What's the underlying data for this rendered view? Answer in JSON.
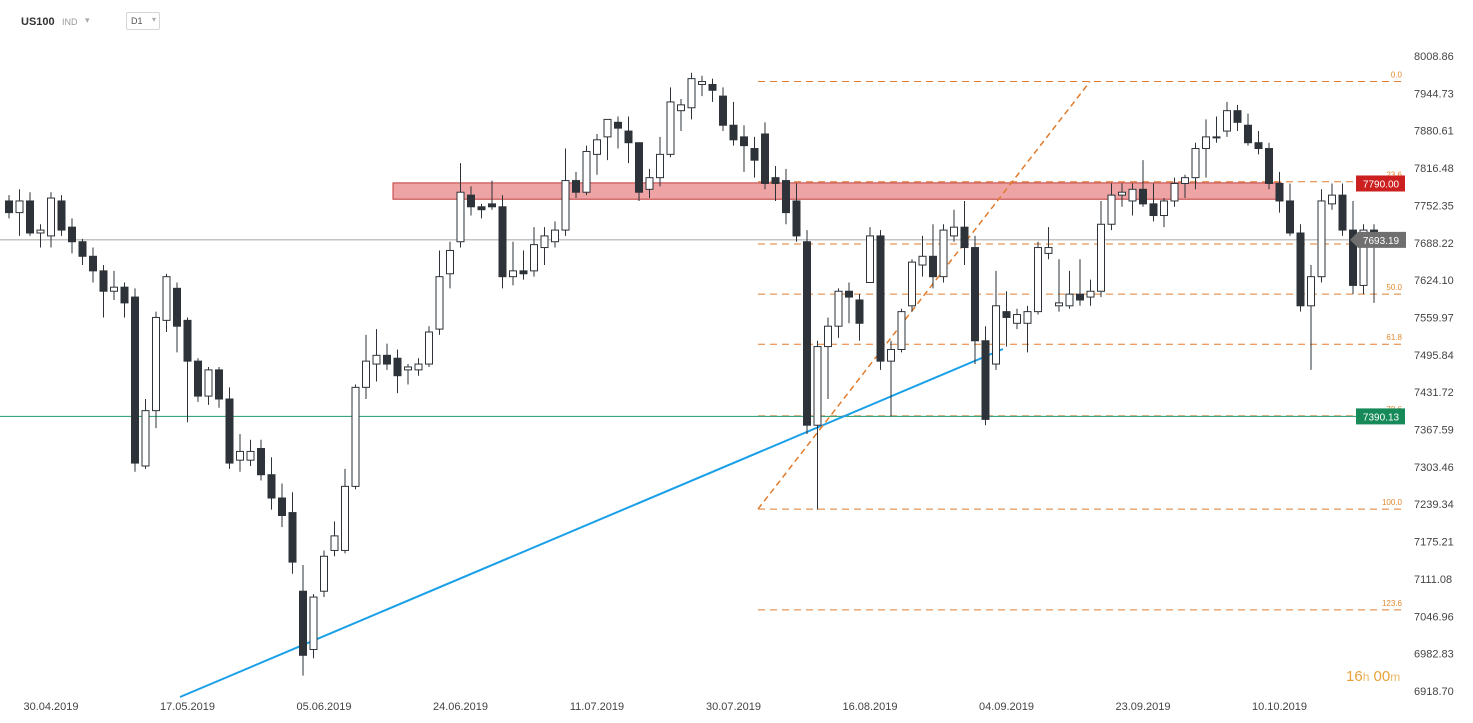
{
  "toolbar": {
    "symbol": "US100",
    "type": "IND",
    "timeframe": "D1"
  },
  "countdown": {
    "value_h": "16",
    "unit_h": "h",
    "value_m": "00",
    "unit_m": "m"
  },
  "colors": {
    "bull_body": "#ffffff",
    "bear_body": "#2d3339",
    "wick": "#2d3339",
    "fib": "#e07c2e",
    "fib_label": "#e08a2e",
    "trendline": "#1aa0e8",
    "resistance_zone": "#e05a5a",
    "resistance_label_bg": "#cc1f1f",
    "support_line": "#1f9a6a",
    "support_label_bg": "#178a5a",
    "price_line": "#888888",
    "price_label_bg": "#6f6f6f"
  },
  "chart_data": {
    "type": "candlestick",
    "title": "US100",
    "timeframe": "D1",
    "ylim": [
      6918.7,
      8008.86
    ],
    "y_ticks": [
      "8008.86",
      "7944.73",
      "7880.61",
      "7816.48",
      "7752.35",
      "7688.22",
      "7624.10",
      "7559.97",
      "7495.84",
      "7431.72",
      "7367.59",
      "7303.46",
      "7239.34",
      "7175.21",
      "7111.08",
      "7046.96",
      "6982.83",
      "6918.70"
    ],
    "x_labels": [
      {
        "label": "30.04.2019",
        "index": 4
      },
      {
        "label": "17.05.2019",
        "index": 17
      },
      {
        "label": "05.06.2019",
        "index": 30
      },
      {
        "label": "24.06.2019",
        "index": 43
      },
      {
        "label": "11.07.2019",
        "index": 56
      },
      {
        "label": "30.07.2019",
        "index": 69
      },
      {
        "label": "16.08.2019",
        "index": 82
      },
      {
        "label": "04.09.2019",
        "index": 95
      },
      {
        "label": "23.09.2019",
        "index": 108
      },
      {
        "label": "10.10.2019",
        "index": 121
      }
    ],
    "candles": [
      {
        "o": 7760,
        "h": 7770,
        "l": 7730,
        "c": 7740
      },
      {
        "o": 7740,
        "h": 7780,
        "l": 7700,
        "c": 7760
      },
      {
        "o": 7760,
        "h": 7775,
        "l": 7700,
        "c": 7705
      },
      {
        "o": 7705,
        "h": 7720,
        "l": 7680,
        "c": 7710
      },
      {
        "o": 7700,
        "h": 7775,
        "l": 7680,
        "c": 7765
      },
      {
        "o": 7760,
        "h": 7770,
        "l": 7700,
        "c": 7710
      },
      {
        "o": 7715,
        "h": 7730,
        "l": 7670,
        "c": 7690
      },
      {
        "o": 7690,
        "h": 7695,
        "l": 7650,
        "c": 7665
      },
      {
        "o": 7665,
        "h": 7680,
        "l": 7620,
        "c": 7640
      },
      {
        "o": 7640,
        "h": 7650,
        "l": 7560,
        "c": 7605
      },
      {
        "o": 7605,
        "h": 7640,
        "l": 7590,
        "c": 7612
      },
      {
        "o": 7612,
        "h": 7620,
        "l": 7560,
        "c": 7585
      },
      {
        "o": 7595,
        "h": 7610,
        "l": 7295,
        "c": 7310
      },
      {
        "o": 7305,
        "h": 7420,
        "l": 7300,
        "c": 7400
      },
      {
        "o": 7400,
        "h": 7570,
        "l": 7370,
        "c": 7560
      },
      {
        "o": 7555,
        "h": 7635,
        "l": 7535,
        "c": 7630
      },
      {
        "o": 7610,
        "h": 7620,
        "l": 7500,
        "c": 7545
      },
      {
        "o": 7555,
        "h": 7560,
        "l": 7380,
        "c": 7485
      },
      {
        "o": 7485,
        "h": 7490,
        "l": 7415,
        "c": 7425
      },
      {
        "o": 7425,
        "h": 7475,
        "l": 7410,
        "c": 7470
      },
      {
        "o": 7470,
        "h": 7475,
        "l": 7405,
        "c": 7420
      },
      {
        "o": 7420,
        "h": 7440,
        "l": 7300,
        "c": 7310
      },
      {
        "o": 7315,
        "h": 7360,
        "l": 7295,
        "c": 7330
      },
      {
        "o": 7315,
        "h": 7350,
        "l": 7305,
        "c": 7330
      },
      {
        "o": 7335,
        "h": 7350,
        "l": 7280,
        "c": 7290
      },
      {
        "o": 7290,
        "h": 7320,
        "l": 7230,
        "c": 7250
      },
      {
        "o": 7250,
        "h": 7275,
        "l": 7200,
        "c": 7220
      },
      {
        "o": 7225,
        "h": 7260,
        "l": 7120,
        "c": 7140
      },
      {
        "o": 7090,
        "h": 7135,
        "l": 6945,
        "c": 6980
      },
      {
        "o": 6990,
        "h": 7085,
        "l": 6975,
        "c": 7080
      },
      {
        "o": 7090,
        "h": 7160,
        "l": 7080,
        "c": 7150
      },
      {
        "o": 7160,
        "h": 7210,
        "l": 7150,
        "c": 7185
      },
      {
        "o": 7160,
        "h": 7300,
        "l": 7155,
        "c": 7270
      },
      {
        "o": 7270,
        "h": 7445,
        "l": 7265,
        "c": 7440
      },
      {
        "o": 7440,
        "h": 7530,
        "l": 7420,
        "c": 7485
      },
      {
        "o": 7480,
        "h": 7540,
        "l": 7450,
        "c": 7495
      },
      {
        "o": 7495,
        "h": 7515,
        "l": 7470,
        "c": 7480
      },
      {
        "o": 7490,
        "h": 7505,
        "l": 7430,
        "c": 7460
      },
      {
        "o": 7470,
        "h": 7480,
        "l": 7445,
        "c": 7475
      },
      {
        "o": 7470,
        "h": 7490,
        "l": 7460,
        "c": 7480
      },
      {
        "o": 7480,
        "h": 7545,
        "l": 7475,
        "c": 7535
      },
      {
        "o": 7540,
        "h": 7675,
        "l": 7530,
        "c": 7630
      },
      {
        "o": 7635,
        "h": 7690,
        "l": 7610,
        "c": 7675
      },
      {
        "o": 7690,
        "h": 7825,
        "l": 7680,
        "c": 7775
      },
      {
        "o": 7770,
        "h": 7785,
        "l": 7735,
        "c": 7750
      },
      {
        "o": 7750,
        "h": 7755,
        "l": 7730,
        "c": 7745
      },
      {
        "o": 7755,
        "h": 7795,
        "l": 7745,
        "c": 7750
      },
      {
        "o": 7750,
        "h": 7770,
        "l": 7610,
        "c": 7630
      },
      {
        "o": 7630,
        "h": 7690,
        "l": 7615,
        "c": 7640
      },
      {
        "o": 7640,
        "h": 7675,
        "l": 7625,
        "c": 7635
      },
      {
        "o": 7640,
        "h": 7715,
        "l": 7630,
        "c": 7685
      },
      {
        "o": 7680,
        "h": 7715,
        "l": 7650,
        "c": 7700
      },
      {
        "o": 7690,
        "h": 7725,
        "l": 7680,
        "c": 7710
      },
      {
        "o": 7710,
        "h": 7850,
        "l": 7700,
        "c": 7795
      },
      {
        "o": 7795,
        "h": 7810,
        "l": 7765,
        "c": 7775
      },
      {
        "o": 7775,
        "h": 7855,
        "l": 7770,
        "c": 7845
      },
      {
        "o": 7840,
        "h": 7875,
        "l": 7805,
        "c": 7865
      },
      {
        "o": 7870,
        "h": 7900,
        "l": 7830,
        "c": 7900
      },
      {
        "o": 7895,
        "h": 7905,
        "l": 7850,
        "c": 7885
      },
      {
        "o": 7880,
        "h": 7905,
        "l": 7825,
        "c": 7860
      },
      {
        "o": 7860,
        "h": 7860,
        "l": 7760,
        "c": 7775
      },
      {
        "o": 7780,
        "h": 7815,
        "l": 7765,
        "c": 7800
      },
      {
        "o": 7800,
        "h": 7870,
        "l": 7785,
        "c": 7840
      },
      {
        "o": 7840,
        "h": 7955,
        "l": 7835,
        "c": 7930
      },
      {
        "o": 7915,
        "h": 7935,
        "l": 7880,
        "c": 7925
      },
      {
        "o": 7920,
        "h": 7980,
        "l": 7900,
        "c": 7970
      },
      {
        "o": 7960,
        "h": 7975,
        "l": 7940,
        "c": 7965
      },
      {
        "o": 7960,
        "h": 7970,
        "l": 7930,
        "c": 7950
      },
      {
        "o": 7940,
        "h": 7955,
        "l": 7880,
        "c": 7890
      },
      {
        "o": 7890,
        "h": 7930,
        "l": 7855,
        "c": 7865
      },
      {
        "o": 7870,
        "h": 7890,
        "l": 7810,
        "c": 7855
      },
      {
        "o": 7850,
        "h": 7870,
        "l": 7800,
        "c": 7830
      },
      {
        "o": 7875,
        "h": 7895,
        "l": 7780,
        "c": 7790
      },
      {
        "o": 7800,
        "h": 7820,
        "l": 7760,
        "c": 7790
      },
      {
        "o": 7795,
        "h": 7815,
        "l": 7720,
        "c": 7740
      },
      {
        "o": 7760,
        "h": 7790,
        "l": 7690,
        "c": 7700
      },
      {
        "o": 7690,
        "h": 7710,
        "l": 7360,
        "c": 7375
      },
      {
        "o": 7375,
        "h": 7520,
        "l": 7230,
        "c": 7510
      },
      {
        "o": 7510,
        "h": 7560,
        "l": 7420,
        "c": 7545
      },
      {
        "o": 7545,
        "h": 7610,
        "l": 7525,
        "c": 7605
      },
      {
        "o": 7605,
        "h": 7620,
        "l": 7550,
        "c": 7595
      },
      {
        "o": 7590,
        "h": 7600,
        "l": 7520,
        "c": 7550
      },
      {
        "o": 7620,
        "h": 7715,
        "l": 7620,
        "c": 7700
      },
      {
        "o": 7700,
        "h": 7710,
        "l": 7470,
        "c": 7485
      },
      {
        "o": 7485,
        "h": 7520,
        "l": 7390,
        "c": 7505
      },
      {
        "o": 7505,
        "h": 7575,
        "l": 7500,
        "c": 7570
      },
      {
        "o": 7580,
        "h": 7660,
        "l": 7570,
        "c": 7655
      },
      {
        "o": 7650,
        "h": 7700,
        "l": 7630,
        "c": 7665
      },
      {
        "o": 7665,
        "h": 7720,
        "l": 7610,
        "c": 7630
      },
      {
        "o": 7630,
        "h": 7720,
        "l": 7620,
        "c": 7710
      },
      {
        "o": 7700,
        "h": 7745,
        "l": 7690,
        "c": 7715
      },
      {
        "o": 7715,
        "h": 7760,
        "l": 7650,
        "c": 7680
      },
      {
        "o": 7680,
        "h": 7700,
        "l": 7480,
        "c": 7520
      },
      {
        "o": 7520,
        "h": 7545,
        "l": 7375,
        "c": 7385
      },
      {
        "o": 7480,
        "h": 7640,
        "l": 7470,
        "c": 7580
      },
      {
        "o": 7570,
        "h": 7605,
        "l": 7510,
        "c": 7560
      },
      {
        "o": 7550,
        "h": 7575,
        "l": 7540,
        "c": 7565
      },
      {
        "o": 7550,
        "h": 7580,
        "l": 7500,
        "c": 7570
      },
      {
        "o": 7570,
        "h": 7690,
        "l": 7565,
        "c": 7680
      },
      {
        "o": 7670,
        "h": 7715,
        "l": 7660,
        "c": 7680
      },
      {
        "o": 7580,
        "h": 7660,
        "l": 7570,
        "c": 7585
      },
      {
        "o": 7580,
        "h": 7640,
        "l": 7575,
        "c": 7600
      },
      {
        "o": 7600,
        "h": 7660,
        "l": 7580,
        "c": 7590
      },
      {
        "o": 7595,
        "h": 7625,
        "l": 7580,
        "c": 7605
      },
      {
        "o": 7605,
        "h": 7760,
        "l": 7595,
        "c": 7720
      },
      {
        "o": 7720,
        "h": 7790,
        "l": 7710,
        "c": 7770
      },
      {
        "o": 7770,
        "h": 7790,
        "l": 7750,
        "c": 7775
      },
      {
        "o": 7760,
        "h": 7790,
        "l": 7735,
        "c": 7780
      },
      {
        "o": 7780,
        "h": 7830,
        "l": 7750,
        "c": 7755
      },
      {
        "o": 7755,
        "h": 7790,
        "l": 7725,
        "c": 7735
      },
      {
        "o": 7735,
        "h": 7765,
        "l": 7715,
        "c": 7760
      },
      {
        "o": 7760,
        "h": 7800,
        "l": 7750,
        "c": 7790
      },
      {
        "o": 7790,
        "h": 7805,
        "l": 7765,
        "c": 7800
      },
      {
        "o": 7800,
        "h": 7860,
        "l": 7780,
        "c": 7850
      },
      {
        "o": 7850,
        "h": 7900,
        "l": 7800,
        "c": 7870
      },
      {
        "o": 7870,
        "h": 7905,
        "l": 7860,
        "c": 7870
      },
      {
        "o": 7880,
        "h": 7930,
        "l": 7870,
        "c": 7915
      },
      {
        "o": 7915,
        "h": 7925,
        "l": 7880,
        "c": 7895
      },
      {
        "o": 7890,
        "h": 7910,
        "l": 7855,
        "c": 7860
      },
      {
        "o": 7860,
        "h": 7880,
        "l": 7840,
        "c": 7850
      },
      {
        "o": 7850,
        "h": 7860,
        "l": 7780,
        "c": 7790
      },
      {
        "o": 7790,
        "h": 7810,
        "l": 7740,
        "c": 7760
      },
      {
        "o": 7760,
        "h": 7790,
        "l": 7700,
        "c": 7705
      },
      {
        "o": 7705,
        "h": 7720,
        "l": 7570,
        "c": 7580
      },
      {
        "o": 7580,
        "h": 7650,
        "l": 7470,
        "c": 7630
      },
      {
        "o": 7630,
        "h": 7780,
        "l": 7620,
        "c": 7760
      },
      {
        "o": 7755,
        "h": 7790,
        "l": 7745,
        "c": 7770
      },
      {
        "o": 7770,
        "h": 7790,
        "l": 7700,
        "c": 7710
      },
      {
        "o": 7710,
        "h": 7760,
        "l": 7600,
        "c": 7615
      },
      {
        "o": 7615,
        "h": 7720,
        "l": 7600,
        "c": 7710
      },
      {
        "o": 7710,
        "h": 7720,
        "l": 7585,
        "c": 7693.19
      }
    ],
    "fib_levels": [
      {
        "label": "0.0",
        "value": 7965
      },
      {
        "label": "23.6",
        "value": 7793
      },
      {
        "label": "38.2",
        "value": 7686
      },
      {
        "label": "50.0",
        "value": 7600
      },
      {
        "label": "61.8",
        "value": 7514
      },
      {
        "label": "78.6",
        "value": 7391
      },
      {
        "label": "100.0",
        "value": 7231
      },
      {
        "label": "123.6",
        "value": 7058
      }
    ],
    "resistance_zone": [
      7763,
      7791
    ],
    "resistance_price": "7790.00",
    "support_price": "7390.13",
    "last_price": "7693.19",
    "annotations": [
      "7790.00",
      "7390.13",
      "7693.19"
    ]
  }
}
